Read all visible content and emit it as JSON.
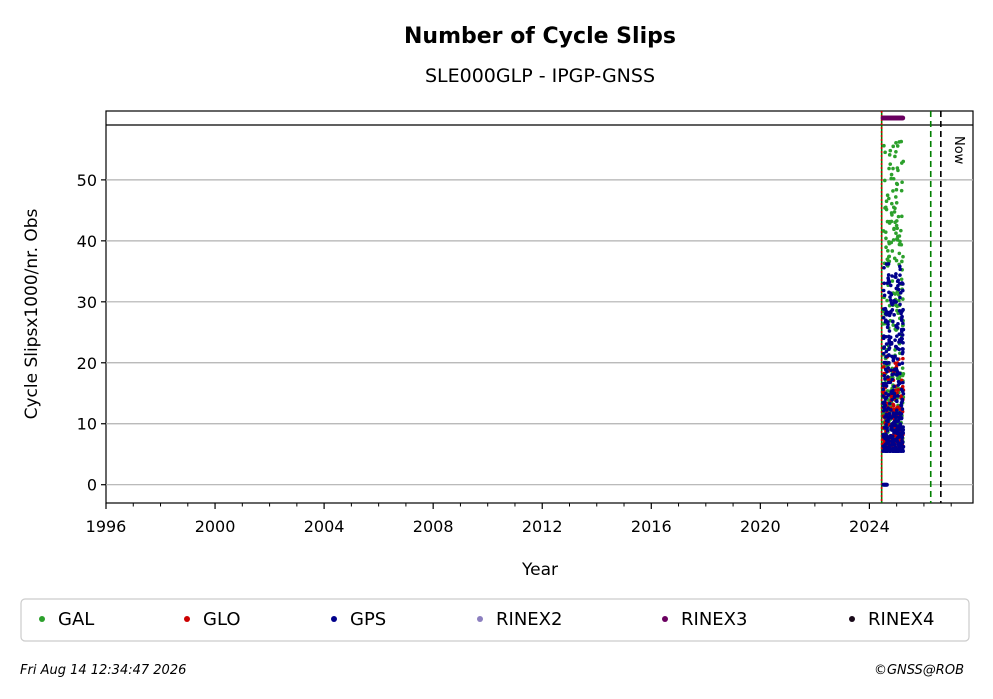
{
  "chart_data": {
    "type": "scatter",
    "title": "Number of Cycle Slips",
    "subtitle": "SLE000GLP - IPGP-GNSS",
    "xlabel": "Year",
    "ylabel": "Cycle Slipsx1000/nr. Obs",
    "xlim": [
      1996,
      2027.8
    ],
    "ylim": [
      -3,
      59
    ],
    "x_ticks": [
      "1996",
      "2000",
      "2004",
      "2008",
      "2012",
      "2016",
      "2020",
      "2024"
    ],
    "y_ticks": [
      "0",
      "10",
      "20",
      "30",
      "40",
      "50"
    ],
    "grid": "horizontal",
    "now_label": "Now",
    "vertical_lines": [
      {
        "x": 2024.45,
        "style": "solid",
        "color": "#008000"
      },
      {
        "x": 2024.45,
        "style": "dotted",
        "color": "#cc0000"
      },
      {
        "x": 2026.25,
        "style": "dashed",
        "color": "#008000"
      },
      {
        "x": 2026.62,
        "style": "dashed",
        "color": "#000000"
      }
    ],
    "x_range_data": [
      2024.5,
      2025.25
    ],
    "series": [
      {
        "name": "GAL",
        "color": "#2ca02c",
        "y_range": [
          7,
          56.5
        ]
      },
      {
        "name": "GLO",
        "color": "#cc0000",
        "y_range": [
          6,
          22
        ]
      },
      {
        "name": "GPS",
        "color": "#00008b",
        "y_range": [
          5.5,
          36.5
        ]
      },
      {
        "name": "RINEX2",
        "color": "#8c7fbf",
        "y_range": []
      },
      {
        "name": "RINEX3",
        "color": "#6a0060",
        "y_range": []
      },
      {
        "name": "RINEX4",
        "color": "#1a0a1a",
        "y_range": []
      }
    ],
    "legend_position": "bottom"
  },
  "footer": {
    "timestamp": "Fri Aug 14 12:34:47 2026",
    "copyright": "©GNSS@ROB"
  }
}
